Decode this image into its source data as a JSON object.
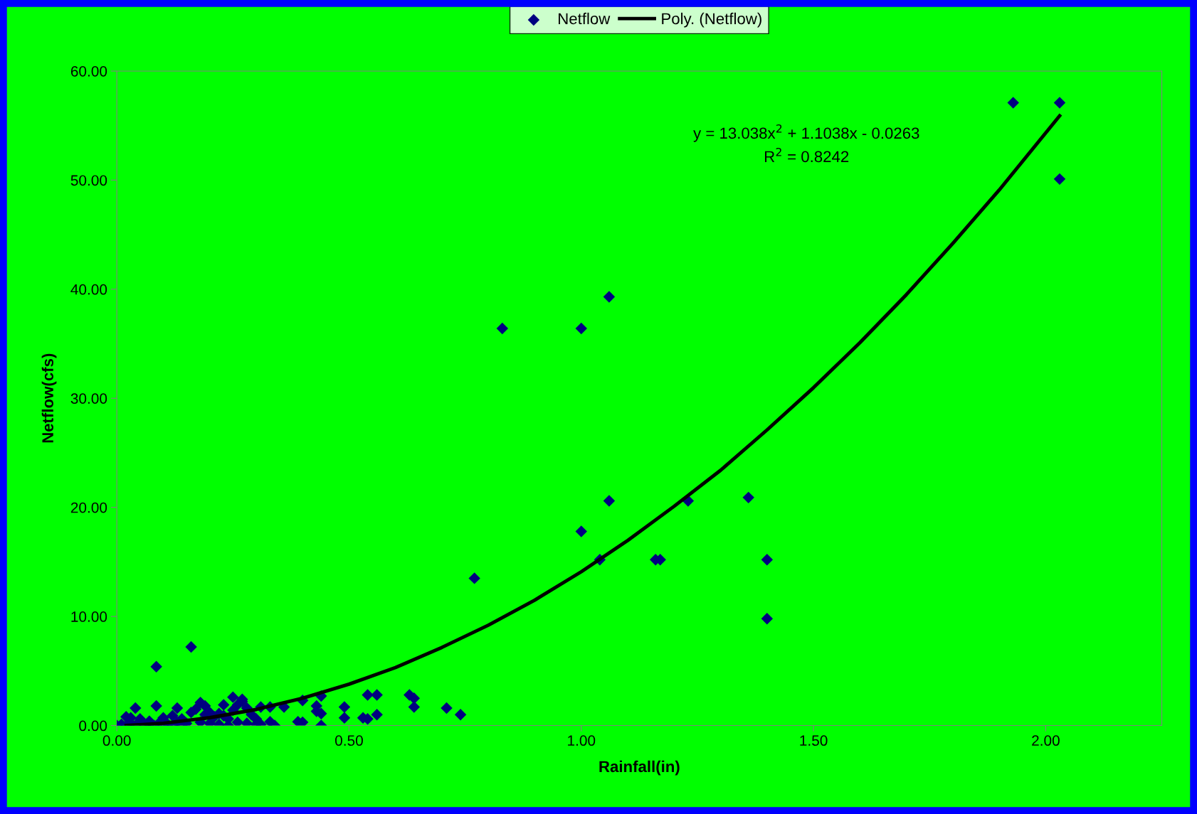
{
  "chart_data": {
    "type": "scatter",
    "xlabel": "Rainfall(in)",
    "ylabel": "Netflow(cfs)",
    "xlim": [
      0,
      2.25
    ],
    "xticks": [
      {
        "value": 0,
        "label": "0.00"
      },
      {
        "value": 0.5,
        "label": "0.50"
      },
      {
        "value": 1,
        "label": "1.00"
      },
      {
        "value": 1.5,
        "label": "1.50"
      },
      {
        "value": 2,
        "label": "2.00"
      }
    ],
    "ylim": [
      0,
      60
    ],
    "yticks": [
      {
        "value": 0,
        "label": "0.00"
      },
      {
        "value": 10,
        "label": "10.00"
      },
      {
        "value": 20,
        "label": "20.00"
      },
      {
        "value": 30,
        "label": "30.00"
      },
      {
        "value": 40,
        "label": "40.00"
      },
      {
        "value": 50,
        "label": "50.00"
      },
      {
        "value": 60,
        "label": "60.00"
      }
    ],
    "grid": false,
    "legend": "top",
    "annotations": [
      "y = 13.038x$^{2}$ + 1.1038x - 0.0263",
      "R$^{2}$ = 0.8242"
    ],
    "series": [
      {
        "name": "Netflow",
        "marker": "diamond",
        "color": "#000080",
        "x": [
          0.0,
          0.01,
          0.02,
          0.03,
          0.04,
          0.06,
          0.07,
          0.08,
          0.09,
          0.1,
          0.11,
          0.12,
          0.13,
          0.14,
          0.15,
          0.03,
          0.05,
          0.07,
          0.1,
          0.12,
          0.14,
          0.02,
          0.04,
          0.085,
          0.13,
          0.16,
          0.17,
          0.18,
          0.19,
          0.2,
          0.21,
          0.22,
          0.23,
          0.24,
          0.25,
          0.26,
          0.27,
          0.28,
          0.29,
          0.3,
          0.18,
          0.2,
          0.22,
          0.24,
          0.26,
          0.28,
          0.3,
          0.19,
          0.23,
          0.25,
          0.27,
          0.085,
          0.16,
          0.31,
          0.33,
          0.34,
          0.31,
          0.33,
          0.36,
          0.39,
          0.4,
          0.4,
          0.43,
          0.43,
          0.44,
          0.44,
          0.44,
          0.49,
          0.49,
          0.53,
          0.54,
          0.56,
          0.54,
          0.56,
          0.63,
          0.64,
          0.64,
          0.71,
          0.74,
          0.77,
          0.83,
          1.0,
          1.06,
          1.0,
          1.06,
          1.04,
          1.16,
          1.17,
          1.23,
          1.36,
          1.4,
          1.4,
          1.93,
          2.03,
          2.03
        ],
        "values": [
          0.0,
          0.1,
          0.0,
          0.2,
          0.0,
          0.0,
          0.1,
          0.0,
          0.2,
          0.0,
          0.1,
          0.0,
          0.3,
          0.0,
          0.2,
          0.7,
          0.6,
          0.4,
          0.7,
          0.9,
          0.6,
          0.8,
          1.6,
          1.8,
          1.6,
          1.2,
          1.5,
          2.1,
          1.0,
          1.2,
          0.8,
          1.1,
          0.9,
          0.6,
          1.4,
          1.9,
          2.4,
          1.6,
          1.0,
          0.6,
          0.3,
          0.2,
          0.1,
          0.0,
          0.3,
          0.2,
          0.1,
          1.8,
          1.9,
          2.6,
          2.2,
          5.4,
          7.2,
          1.7,
          1.7,
          0.0,
          0.1,
          0.35,
          1.7,
          0.35,
          0.3,
          2.3,
          1.8,
          1.3,
          2.7,
          1.1,
          0.0,
          1.7,
          0.7,
          0.7,
          0.6,
          1.0,
          2.8,
          2.8,
          2.8,
          2.5,
          1.7,
          1.6,
          1.0,
          13.5,
          36.4,
          36.4,
          39.3,
          17.8,
          20.6,
          15.2,
          15.2,
          15.2,
          20.6,
          20.9,
          15.2,
          9.8,
          57.1,
          57.1,
          50.1
        ]
      },
      {
        "name": "Poly. (Netflow)",
        "type": "line",
        "color": "#000000",
        "line_style": "solid",
        "marker": "none",
        "x": [
          0.02,
          0.1,
          0.2,
          0.3,
          0.4,
          0.5,
          0.6,
          0.7,
          0.8,
          0.9,
          1.0,
          1.1,
          1.2,
          1.3,
          1.4,
          1.5,
          1.6,
          1.7,
          1.8,
          1.9,
          2.03
        ],
        "values": [
          0.0,
          0.21,
          0.72,
          1.47,
          2.5,
          3.79,
          5.32,
          7.16,
          9.2,
          11.5,
          14.1,
          16.97,
          20.1,
          23.4,
          27.1,
          30.97,
          35.1,
          39.5,
          44.2,
          49.1,
          55.9
        ]
      }
    ]
  }
}
